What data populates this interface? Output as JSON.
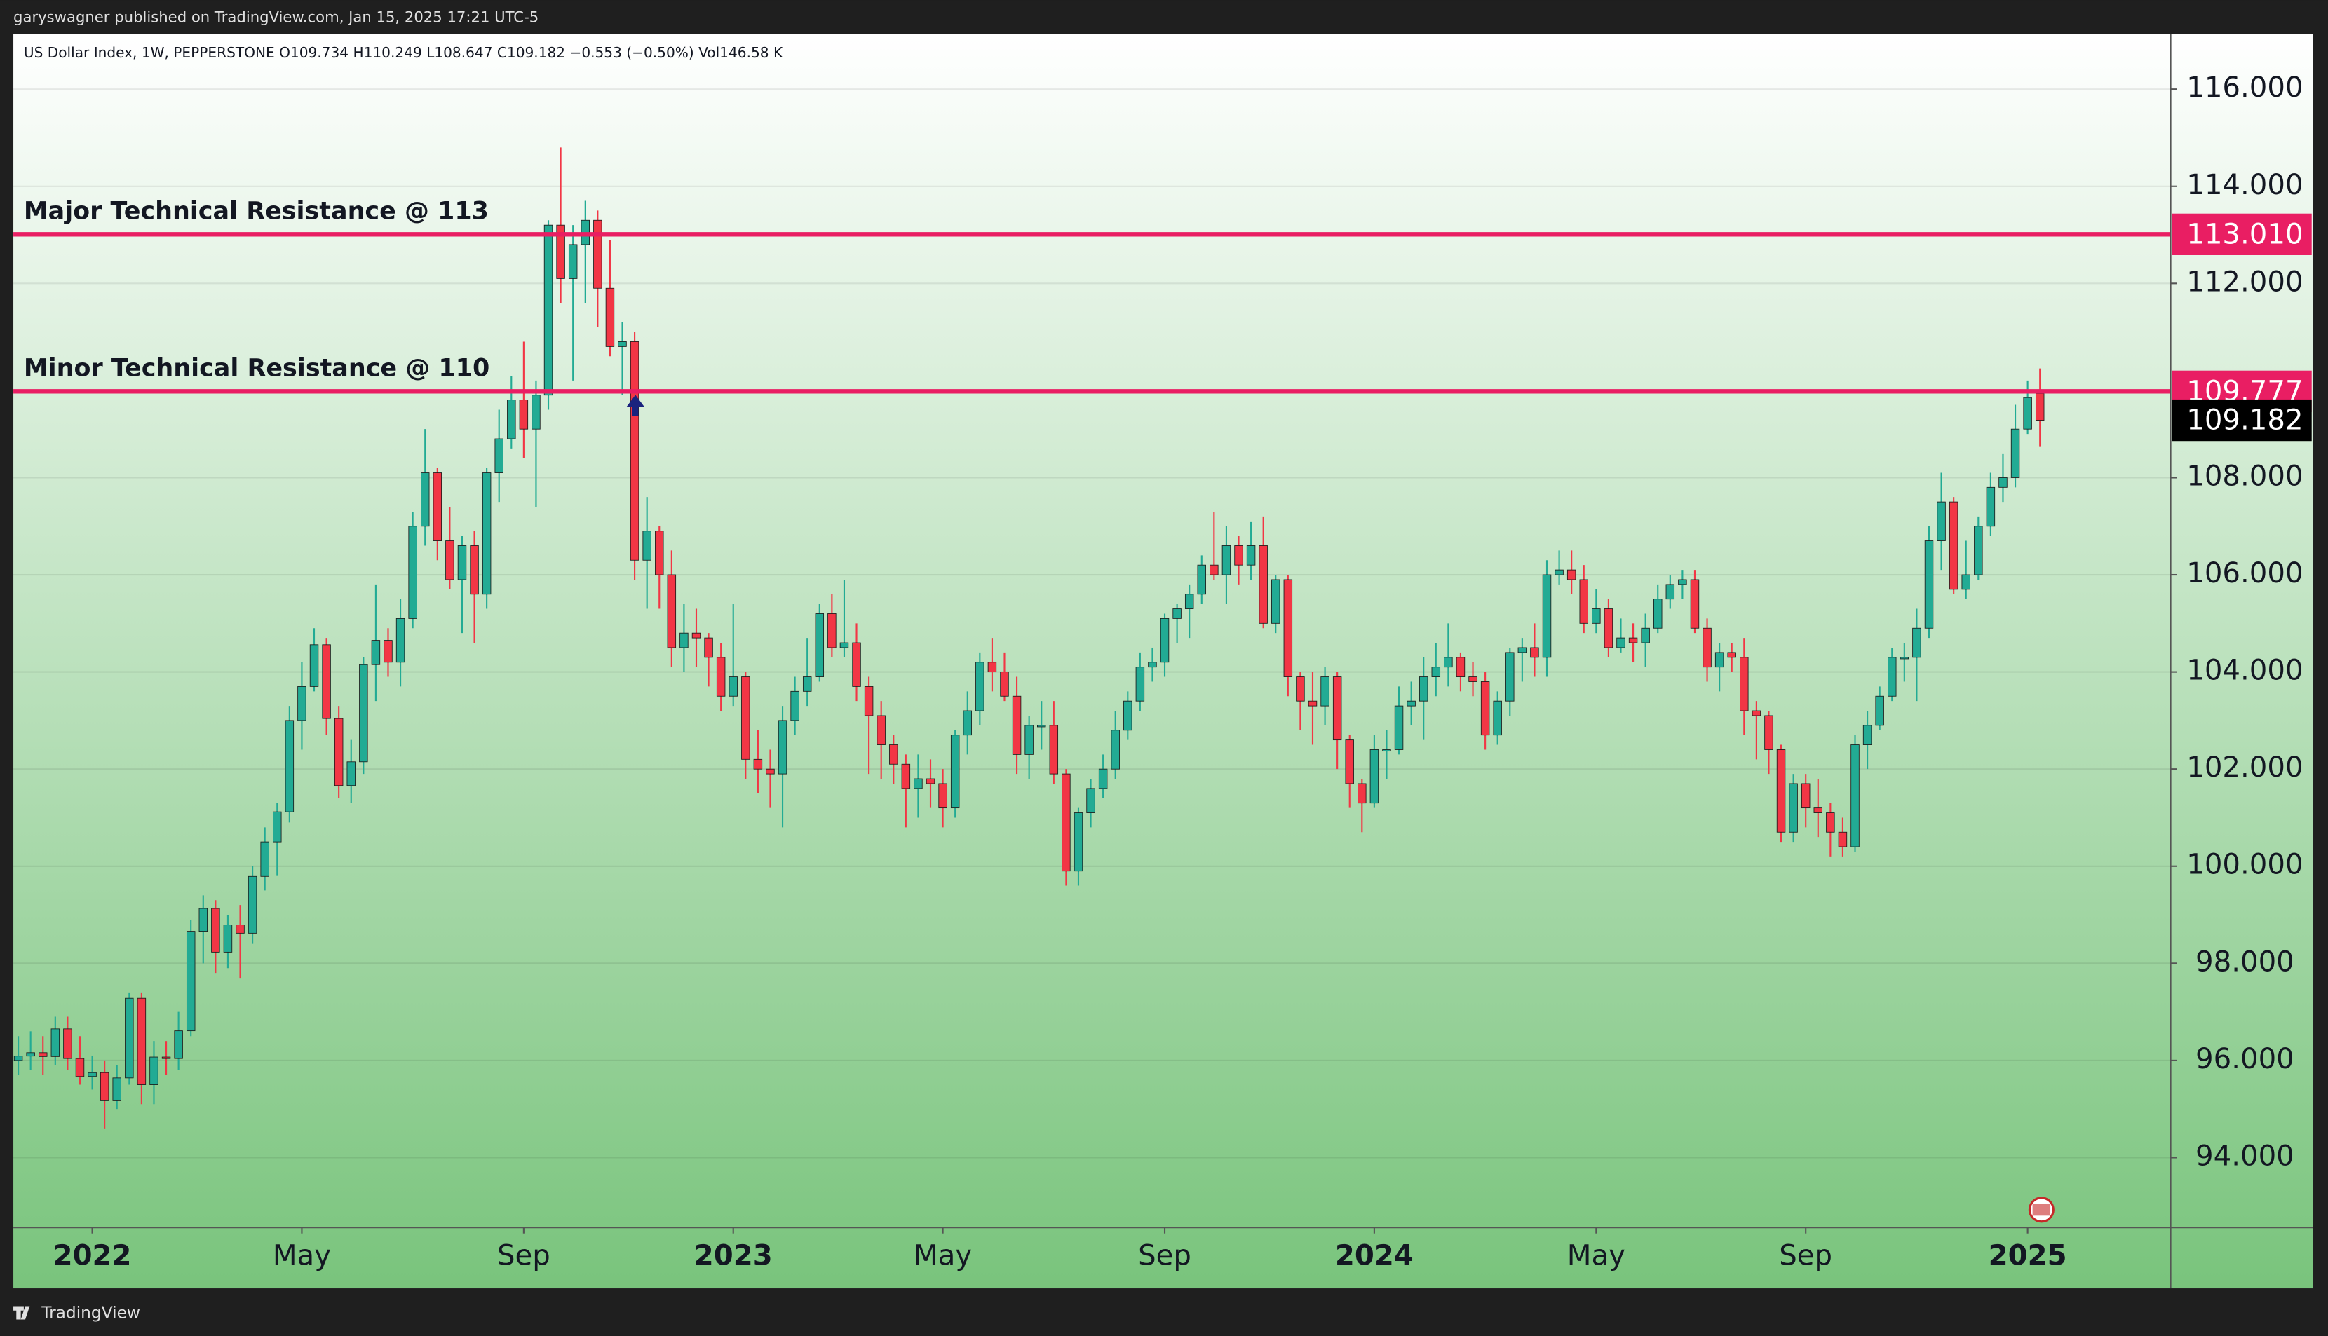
{
  "published": "garyswagner published on TradingView.com, Jan 15, 2025 17:21 UTC-5",
  "brand": "TradingView",
  "chart_data": {
    "type": "candlestick",
    "legend_text": "US Dollar Index, 1W, PEPPERSTONE  O109.734  H110.249  L108.647  C109.182  −0.553 (−0.50%)  Vol146.58 K",
    "up_color": "#22ab94",
    "down_color": "#f23645",
    "ylim": [
      92.56,
      117.13
    ],
    "yticks": [
      {
        "value": 94,
        "label": "94.000"
      },
      {
        "value": 96,
        "label": "96.000"
      },
      {
        "value": 98,
        "label": "98.000"
      },
      {
        "value": 100,
        "label": "100.000"
      },
      {
        "value": 102,
        "label": "102.000"
      },
      {
        "value": 104,
        "label": "104.000"
      },
      {
        "value": 106,
        "label": "106.000"
      },
      {
        "value": 108,
        "label": "108.000"
      },
      {
        "value": 112,
        "label": "112.000"
      },
      {
        "value": 114,
        "label": "114.000"
      },
      {
        "value": 116,
        "label": "116.000"
      }
    ],
    "grid": true,
    "xlim": [
      -0.4,
      174.6
    ],
    "xticks": [
      {
        "value": 6,
        "label": "2022"
      },
      {
        "value": 23,
        "label": "May"
      },
      {
        "value": 41,
        "label": "Sep"
      },
      {
        "value": 58,
        "label": "2023"
      },
      {
        "value": 75,
        "label": "May"
      },
      {
        "value": 93,
        "label": "Sep"
      },
      {
        "value": 110,
        "label": "2024"
      },
      {
        "value": 128,
        "label": "May"
      },
      {
        "value": 145,
        "label": "Sep"
      },
      {
        "value": 163,
        "label": "2025"
      }
    ],
    "hlines": [
      {
        "value": 113.01,
        "label": "113.010",
        "text": "Major Technical Resistance @ 113",
        "color": "#e91e63"
      },
      {
        "value": 109.777,
        "label": "109.777",
        "text": "Minor Technical Resistance @ 110",
        "color": "#e91e63"
      }
    ],
    "open": [
      96.0,
      96.09,
      96.16,
      96.08,
      96.65,
      96.04,
      95.67,
      95.75,
      95.17,
      95.64,
      97.28,
      95.5,
      96.07,
      96.04,
      96.61,
      98.66,
      99.13,
      98.23,
      98.79,
      98.62,
      99.79,
      100.5,
      101.12,
      103.0,
      103.7,
      104.56,
      103.04,
      101.66,
      102.15,
      104.15,
      104.65,
      104.2,
      105.1,
      107.0,
      108.1,
      106.7,
      105.9,
      106.6,
      105.6,
      108.1,
      108.8,
      109.6,
      109.0,
      109.7,
      113.2,
      112.1,
      112.8,
      113.3,
      111.9,
      110.7,
      110.8,
      106.3,
      106.9,
      106.0,
      104.5,
      104.8,
      104.7,
      104.3,
      103.5,
      103.9,
      102.2,
      102.0,
      101.9,
      103.0,
      103.6,
      103.9,
      105.2,
      104.5,
      104.6,
      103.7,
      103.1,
      102.5,
      102.1,
      101.6,
      101.8,
      101.7,
      101.2,
      102.7,
      103.2,
      104.2,
      104.0,
      103.5,
      102.3,
      102.9,
      102.9,
      101.9,
      99.9,
      101.1,
      101.6,
      102.0,
      102.8,
      103.4,
      104.1,
      104.2,
      105.1,
      105.3,
      105.6,
      106.2,
      106.0,
      106.6,
      106.2,
      106.6,
      105.0,
      105.9,
      103.9,
      103.4,
      103.3,
      103.9,
      102.6,
      101.7,
      101.3,
      102.4,
      102.4,
      103.3,
      103.4,
      103.9,
      104.1,
      104.3,
      103.9,
      103.8,
      102.7,
      103.4,
      104.4,
      104.5,
      104.3,
      106.0,
      106.1,
      105.9,
      105.0,
      105.3,
      104.5,
      104.7,
      104.6,
      104.9,
      105.5,
      105.8,
      105.9,
      104.9,
      104.1,
      104.4,
      104.3,
      103.2,
      103.1,
      102.4,
      100.7,
      101.7,
      101.2,
      101.1,
      100.7,
      100.4,
      102.5,
      102.9,
      103.5,
      104.3,
      104.3,
      104.9,
      106.7,
      107.5,
      105.7,
      106.0,
      107.0,
      107.8,
      108.0,
      109.0,
      109.734
    ],
    "high": [
      96.5,
      96.6,
      96.5,
      96.9,
      96.9,
      96.5,
      96.1,
      96.0,
      95.9,
      97.4,
      97.4,
      96.4,
      96.4,
      97.0,
      98.9,
      99.4,
      99.3,
      99.0,
      99.2,
      100.0,
      100.8,
      101.3,
      103.3,
      104.2,
      104.9,
      104.7,
      103.3,
      102.6,
      104.3,
      105.8,
      104.9,
      105.5,
      107.3,
      109.0,
      108.2,
      107.4,
      106.8,
      106.9,
      108.2,
      109.4,
      110.1,
      110.8,
      110.0,
      113.3,
      114.8,
      113.2,
      113.7,
      113.5,
      112.9,
      111.2,
      111.0,
      107.6,
      107.0,
      106.5,
      105.4,
      105.3,
      104.8,
      104.6,
      105.4,
      104.0,
      102.8,
      102.4,
      103.3,
      103.9,
      104.7,
      105.4,
      105.6,
      105.9,
      105.0,
      103.9,
      103.4,
      102.7,
      102.3,
      102.3,
      102.2,
      102.0,
      102.8,
      103.6,
      104.4,
      104.7,
      104.4,
      103.9,
      103.1,
      103.4,
      103.4,
      102.0,
      101.2,
      101.8,
      102.3,
      103.2,
      103.6,
      104.4,
      104.5,
      105.2,
      105.4,
      105.8,
      106.4,
      107.3,
      107.0,
      106.8,
      107.1,
      107.2,
      106.0,
      106.0,
      104.0,
      104.0,
      104.1,
      104.0,
      102.7,
      101.8,
      102.7,
      102.8,
      103.7,
      103.8,
      104.3,
      104.6,
      105.0,
      104.4,
      104.2,
      104.0,
      103.6,
      104.5,
      104.7,
      105.0,
      106.3,
      106.5,
      106.5,
      106.2,
      105.7,
      105.5,
      105.1,
      105.0,
      105.2,
      105.8,
      106.0,
      106.1,
      106.1,
      105.1,
      104.6,
      104.6,
      104.7,
      103.4,
      103.2,
      102.5,
      101.9,
      101.9,
      101.8,
      101.3,
      101.0,
      102.7,
      103.2,
      103.7,
      104.5,
      104.6,
      105.3,
      107.0,
      108.1,
      107.6,
      106.7,
      107.2,
      108.1,
      108.5,
      109.5,
      110.0,
      110.249
    ],
    "low": [
      95.7,
      95.8,
      95.7,
      95.9,
      95.8,
      95.5,
      95.4,
      94.6,
      95.0,
      95.5,
      95.1,
      95.1,
      95.7,
      95.8,
      96.5,
      98.0,
      97.8,
      97.9,
      97.7,
      98.4,
      99.5,
      99.8,
      100.9,
      102.4,
      103.6,
      102.7,
      101.4,
      101.3,
      101.9,
      103.4,
      103.9,
      103.7,
      104.9,
      106.6,
      106.3,
      105.7,
      104.8,
      104.6,
      105.3,
      107.5,
      108.6,
      108.4,
      107.4,
      109.4,
      111.6,
      110.0,
      111.6,
      111.1,
      110.5,
      109.7,
      105.9,
      105.3,
      105.3,
      104.1,
      104.0,
      104.1,
      103.7,
      103.2,
      103.3,
      101.8,
      101.5,
      101.2,
      100.8,
      102.7,
      103.3,
      103.8,
      104.3,
      104.3,
      103.4,
      101.9,
      101.8,
      101.7,
      100.8,
      101.0,
      101.2,
      100.8,
      101.0,
      102.3,
      102.9,
      103.6,
      103.4,
      101.9,
      101.8,
      102.4,
      101.7,
      99.6,
      99.6,
      100.8,
      101.4,
      101.8,
      102.6,
      103.2,
      103.8,
      103.9,
      104.6,
      104.7,
      105.4,
      105.9,
      105.4,
      105.8,
      105.9,
      104.9,
      104.8,
      103.5,
      102.8,
      102.5,
      102.9,
      102.0,
      101.2,
      100.7,
      101.2,
      101.8,
      102.3,
      102.9,
      102.6,
      103.5,
      103.7,
      103.6,
      103.5,
      102.4,
      102.5,
      103.1,
      103.8,
      103.9,
      103.9,
      105.8,
      105.6,
      104.8,
      104.8,
      104.3,
      104.4,
      104.2,
      104.1,
      104.8,
      105.3,
      105.5,
      104.8,
      103.8,
      103.6,
      104.0,
      102.7,
      102.2,
      101.9,
      100.5,
      100.5,
      100.8,
      100.6,
      100.2,
      100.2,
      100.3,
      102.0,
      102.8,
      103.4,
      103.8,
      103.4,
      104.7,
      106.1,
      105.6,
      105.5,
      105.9,
      106.8,
      107.5,
      107.8,
      108.9,
      108.647
    ],
    "close": [
      96.09,
      96.16,
      96.08,
      96.65,
      96.04,
      95.67,
      95.75,
      95.17,
      95.64,
      97.28,
      95.5,
      96.07,
      96.04,
      96.61,
      98.66,
      99.13,
      98.23,
      98.79,
      98.62,
      99.79,
      100.5,
      101.12,
      103.0,
      103.7,
      104.56,
      103.04,
      101.66,
      102.15,
      104.15,
      104.65,
      104.2,
      105.1,
      107.0,
      108.1,
      106.7,
      105.9,
      106.6,
      105.6,
      108.1,
      108.8,
      109.6,
      109.0,
      109.7,
      113.2,
      112.1,
      112.8,
      113.3,
      111.9,
      110.7,
      110.8,
      106.3,
      106.9,
      106.0,
      104.5,
      104.8,
      104.7,
      104.3,
      103.5,
      103.9,
      102.2,
      102.0,
      101.9,
      103.0,
      103.6,
      103.9,
      105.2,
      104.5,
      104.6,
      103.7,
      103.1,
      102.5,
      102.1,
      101.6,
      101.8,
      101.7,
      101.2,
      102.7,
      103.2,
      104.2,
      104.0,
      103.5,
      102.3,
      102.9,
      102.9,
      101.9,
      99.9,
      101.1,
      101.6,
      102.0,
      102.8,
      103.4,
      104.1,
      104.2,
      105.1,
      105.3,
      105.6,
      106.2,
      106.0,
      106.6,
      106.2,
      106.6,
      105.0,
      105.9,
      103.9,
      103.4,
      103.3,
      103.9,
      102.6,
      101.7,
      101.3,
      102.4,
      102.4,
      103.3,
      103.4,
      103.9,
      104.1,
      104.3,
      103.9,
      103.8,
      102.7,
      103.4,
      104.4,
      104.5,
      104.3,
      106.0,
      106.1,
      105.9,
      105.0,
      105.3,
      104.5,
      104.7,
      104.6,
      104.9,
      105.5,
      105.8,
      105.9,
      104.9,
      104.1,
      104.4,
      104.3,
      103.2,
      103.1,
      102.4,
      100.7,
      101.7,
      101.2,
      101.1,
      100.7,
      100.4,
      102.5,
      102.9,
      103.5,
      104.3,
      104.3,
      104.9,
      106.7,
      107.5,
      105.7,
      106.0,
      107.0,
      107.8,
      108.0,
      109.0,
      109.65,
      109.182
    ]
  }
}
